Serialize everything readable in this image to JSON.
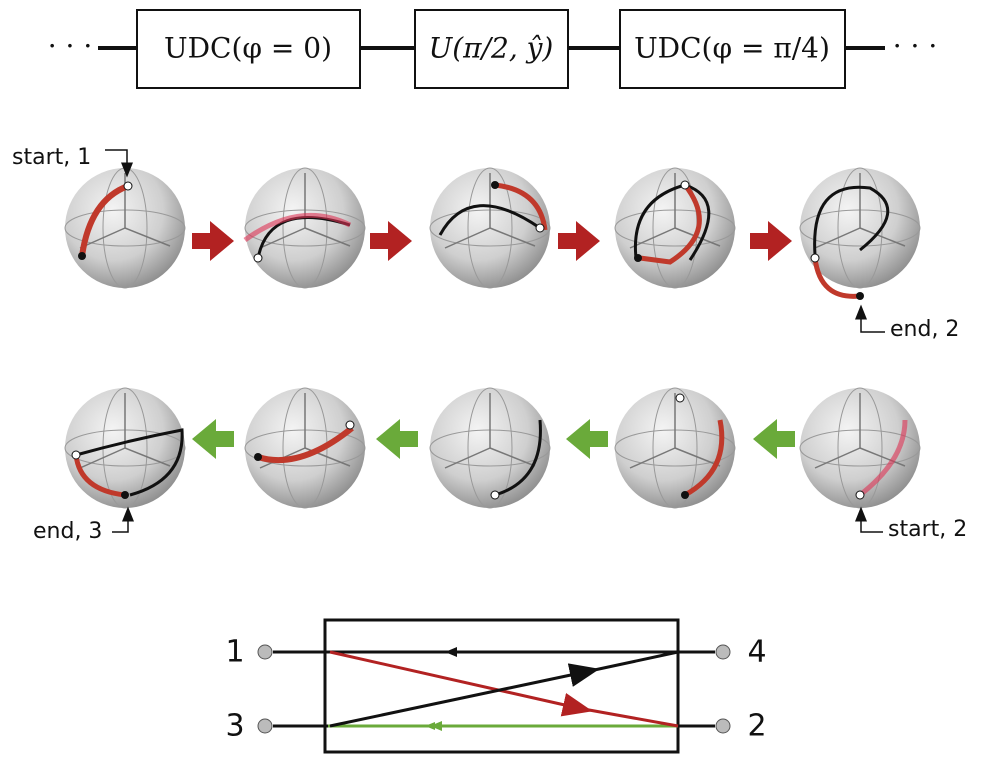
{
  "pipeline": {
    "left_dots": "· · ·",
    "boxes": [
      "UDC(φ = 0)",
      "U(π/2, ŷ)",
      "UDC(φ = π/4)"
    ],
    "right_dots": "· · ·"
  },
  "annotations": {
    "row1_start": "start, 1",
    "row1_end": "end, 2",
    "row2_end": "end, 3",
    "row2_start": "start, 2"
  },
  "circulator": {
    "ports": [
      "1",
      "4",
      "3",
      "2"
    ]
  }
}
